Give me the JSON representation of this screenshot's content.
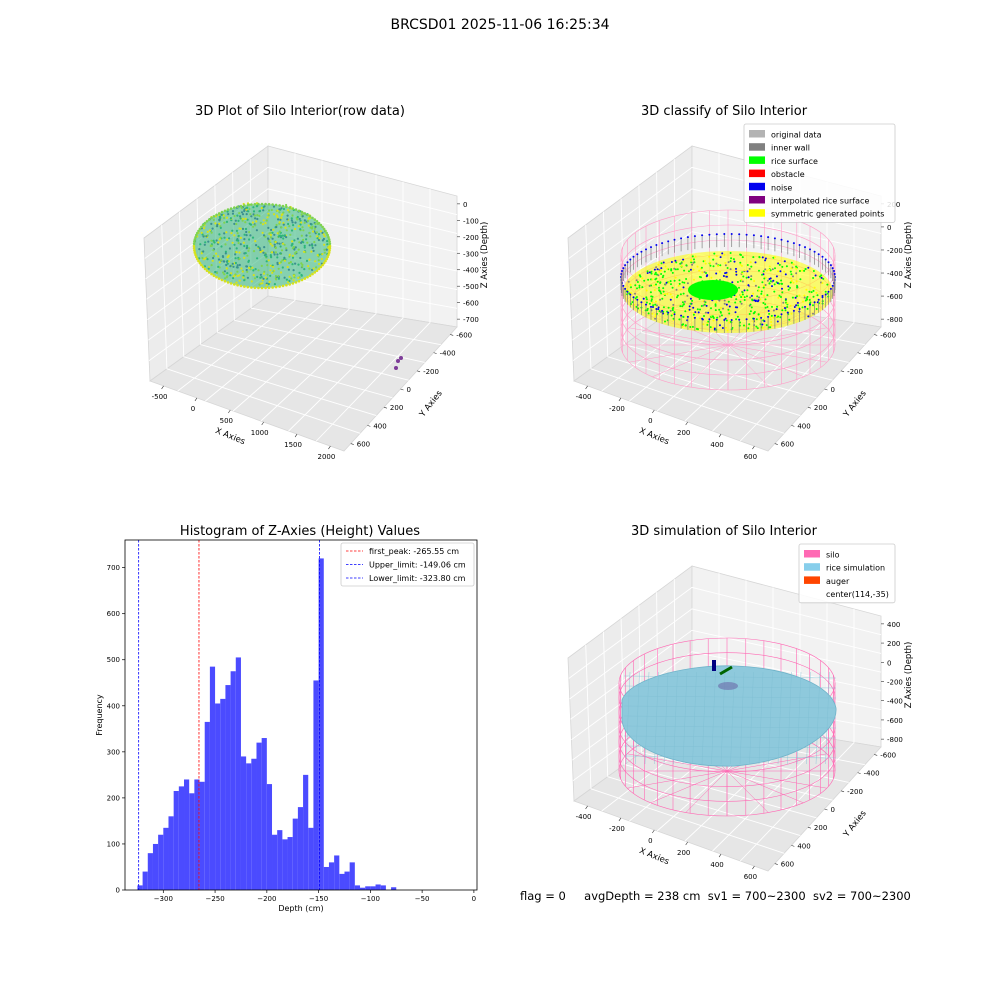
{
  "figure_title": "BRCSD01 2025-11-06 16:25:34",
  "chart_data": [
    {
      "type": "scatter",
      "title": "3D Plot of Silo Interior(row data)",
      "xlabel": "X Axies",
      "ylabel": "Y Axies",
      "zlabel": "Z Axies (Depth)",
      "x_ticks": [
        "-500",
        "0",
        "500",
        "1000",
        "1500",
        "2000"
      ],
      "y_ticks": [
        "-600",
        "-400",
        "-200",
        "0",
        "200",
        "400",
        "600"
      ],
      "z_ticks": [
        "0",
        "-100",
        "-200",
        "-300",
        "-400",
        "-500",
        "-600",
        "-700"
      ],
      "colormap": [
        "#3b8f8f",
        "#2db67a",
        "#7ed34f",
        "#d6e21a"
      ],
      "outlier_color": "#7d3c98"
    },
    {
      "type": "scatter",
      "title": "3D classify of Silo Interior",
      "xlabel": "X Axies",
      "ylabel": "Y Axies",
      "zlabel": "Z Axies (Depth)",
      "x_ticks": [
        "-400",
        "-200",
        "0",
        "200",
        "400",
        "600"
      ],
      "y_ticks": [
        "-600",
        "-400",
        "-200",
        "0",
        "200",
        "400",
        "600"
      ],
      "z_ticks": [
        "200",
        "0",
        "-200",
        "-400",
        "-600",
        "-800"
      ],
      "z_tick_partial": "0",
      "legend_position": "top-right",
      "legend": [
        {
          "label": "original data",
          "color": "#b3b3b3"
        },
        {
          "label": "inner wall",
          "color": "#808080"
        },
        {
          "label": "rice surface",
          "color": "#00ff00"
        },
        {
          "label": "obstacle",
          "color": "#ff0000"
        },
        {
          "label": "noise",
          "color": "#0000ee"
        },
        {
          "label": "interpolated rice surface",
          "color": "#800080"
        },
        {
          "label": "symmetric generated points",
          "color": "#ffff00"
        }
      ],
      "wireframe_color": "#ff9ec8"
    },
    {
      "type": "bar",
      "title": "Histogram of Z-Axies (Height) Values",
      "xlabel": "Depth (cm)",
      "ylabel": "Frequency",
      "xlim": [
        -337,
        3
      ],
      "ylim": [
        0,
        760
      ],
      "x_ticks": [
        -300,
        -250,
        -200,
        -150,
        -100,
        -50,
        0
      ],
      "y_ticks": [
        0,
        100,
        200,
        300,
        400,
        500,
        600,
        700
      ],
      "bar_color": "#4b4bff",
      "bin_start": -325,
      "bin_width": 5,
      "values": [
        10,
        40,
        80,
        100,
        120,
        135,
        160,
        215,
        225,
        240,
        210,
        240,
        235,
        365,
        485,
        405,
        415,
        445,
        475,
        505,
        290,
        275,
        285,
        320,
        330,
        230,
        120,
        130,
        110,
        115,
        155,
        180,
        250,
        135,
        455,
        720,
        50,
        60,
        75,
        35,
        40,
        60,
        10,
        5,
        8,
        8,
        12,
        10,
        0,
        6
      ],
      "legend_position": "top-right",
      "lines": [
        {
          "label": "first_peak: -265.55 cm",
          "value": -265.55,
          "color": "#ff0000"
        },
        {
          "label": "Upper_limit: -149.06 cm",
          "value": -149.06,
          "color": "#0000ff"
        },
        {
          "label": "Lower_limit: -323.80 cm",
          "value": -323.8,
          "color": "#0000ff"
        }
      ]
    },
    {
      "type": "scatter",
      "title": "3D simulation of Silo Interior",
      "xlabel": "X Axies",
      "ylabel": "Y Axies",
      "zlabel": "Z Axies (Depth)",
      "x_ticks": [
        "-400",
        "-200",
        "0",
        "200",
        "400",
        "600"
      ],
      "y_ticks": [
        "-600",
        "-400",
        "-200",
        "0",
        "200",
        "400",
        "600"
      ],
      "z_ticks": [
        "400",
        "200",
        "0",
        "-200",
        "-400",
        "-600",
        "-800"
      ],
      "legend_position": "top-right",
      "legend": [
        {
          "label": "silo",
          "color": "#ff69b4"
        },
        {
          "label": "rice simulation",
          "color": "#87ceeb"
        },
        {
          "label": "auger",
          "color": "#ff4500"
        },
        {
          "label": "center(114,-35)",
          "color": ""
        }
      ],
      "surface_color": "#8ec9dc",
      "wireframe_color": "#ff69b4"
    }
  ],
  "footer": {
    "flag": "flag = 0",
    "avg": "avgDepth = 238 cm",
    "sv1": "sv1 = 700~2300",
    "sv2": "sv2 = 700~2300"
  }
}
